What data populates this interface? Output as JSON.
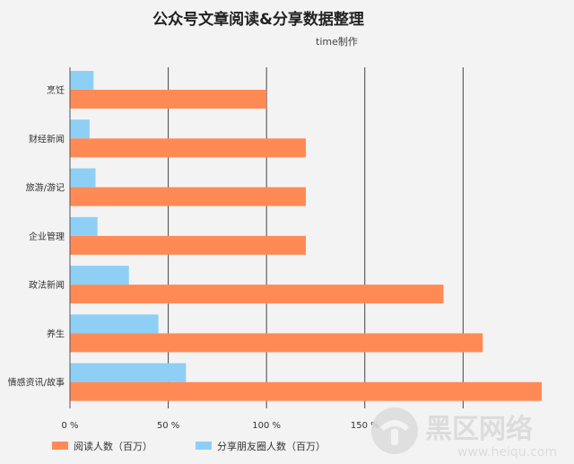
{
  "chart_data": {
    "type": "bar",
    "orientation": "horizontal",
    "title": "公众号文章阅读&分享数据整理",
    "subtitle": "time制作",
    "categories": [
      "烹饪",
      "财经新闻",
      "旅游/游记",
      "企业管理",
      "政法新闻",
      "养生",
      "情感资讯/故事"
    ],
    "series": [
      {
        "name": "阅读人数（百万）",
        "color": "#ff8a56",
        "values": [
          100,
          120,
          120,
          120,
          190,
          210,
          240
        ]
      },
      {
        "name": "分享朋友圈人数（百万）",
        "color": "#8ecff5",
        "values": [
          12,
          10,
          13,
          14,
          30,
          45,
          59
        ]
      }
    ],
    "xlim": [
      0,
      240
    ],
    "ticks": [
      0,
      50,
      100,
      150,
      200
    ],
    "tick_labels": [
      "0 %",
      "50 %",
      "100 %",
      "150 %",
      ""
    ],
    "grid": true,
    "legend": "bottom-left"
  },
  "watermark": {
    "text": "黑区网络",
    "url": "www.heiqu.com"
  }
}
